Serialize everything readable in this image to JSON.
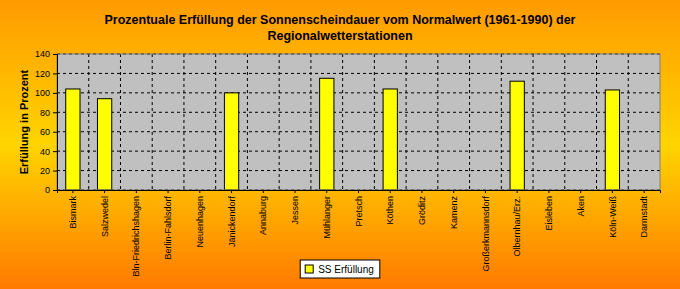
{
  "chart_data": {
    "type": "bar",
    "title": "Prozentuale Erfüllung der Sonnenscheindauer vom Normalwert (1961-1990) der Regionalwetterstationen",
    "y_label": "Erfüllung in Prozent",
    "categories": [
      "Bismark",
      "Salzwedel",
      "Bln-Friedrichshagen",
      "Berlin-Fahlsdorf",
      "Neuenhagen",
      "Jänickendorf",
      "Annaburg",
      "Jessen",
      "Mühlanger",
      "Pretsch",
      "Köthen",
      "Gröditz",
      "Kamenz",
      "Großerkmannsdorf",
      "Olbernhau/Erz.",
      "Eisleben",
      "Aken",
      "Köln-Weiß",
      "Darmstadt"
    ],
    "series": [
      {
        "name": "SS Erfüllung",
        "color": "#ffff00",
        "values": [
          104,
          94,
          null,
          null,
          null,
          100,
          null,
          null,
          115,
          null,
          104,
          null,
          null,
          null,
          112,
          null,
          null,
          103,
          null
        ]
      }
    ],
    "ylim": [
      0,
      140
    ],
    "yticks": [
      0,
      20,
      40,
      60,
      80,
      100,
      120,
      140
    ],
    "grid": true,
    "legend": "bottom"
  }
}
